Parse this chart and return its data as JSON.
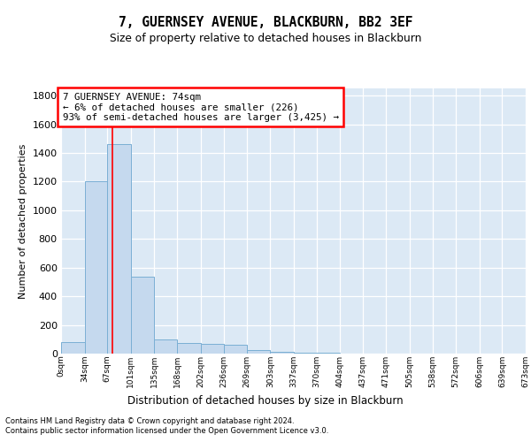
{
  "title": "7, GUERNSEY AVENUE, BLACKBURN, BB2 3EF",
  "subtitle": "Size of property relative to detached houses in Blackburn",
  "xlabel": "Distribution of detached houses by size in Blackburn",
  "ylabel": "Number of detached properties",
  "bar_color": "#c5d9ee",
  "bar_edge_color": "#7aafd4",
  "background_color": "#dce9f5",
  "annotation_text": "7 GUERNSEY AVENUE: 74sqm\n← 6% of detached houses are smaller (226)\n93% of semi-detached houses are larger (3,425) →",
  "property_size": 74,
  "bins": [
    0,
    34,
    67,
    101,
    135,
    168,
    202,
    236,
    269,
    303,
    337,
    370,
    404,
    437,
    471,
    505,
    538,
    572,
    606,
    639,
    673
  ],
  "bar_heights": [
    80,
    1200,
    1460,
    535,
    100,
    75,
    65,
    60,
    25,
    10,
    5,
    5,
    0,
    0,
    0,
    0,
    0,
    0,
    0,
    0
  ],
  "ylim": [
    0,
    1850
  ],
  "yticks": [
    0,
    200,
    400,
    600,
    800,
    1000,
    1200,
    1400,
    1600,
    1800
  ],
  "footer_line1": "Contains HM Land Registry data © Crown copyright and database right 2024.",
  "footer_line2": "Contains public sector information licensed under the Open Government Licence v3.0."
}
